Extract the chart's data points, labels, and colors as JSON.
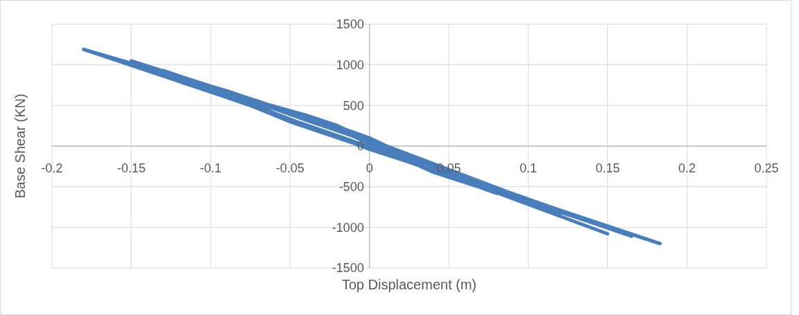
{
  "chart_data": {
    "type": "line",
    "xlabel": "Top Displacement (m)",
    "ylabel": "Base Shear (KN)",
    "xlim": [
      -0.2,
      0.25
    ],
    "xticks": [
      -0.2,
      -0.15,
      -0.1,
      -0.05,
      0,
      0.05,
      0.1,
      0.15,
      0.2,
      0.25
    ],
    "ylim": [
      -1500,
      1500
    ],
    "yticks": [
      -1500,
      -1000,
      -500,
      0,
      500,
      1000,
      1500
    ],
    "grid": true,
    "marker": "none",
    "line_style": "solid",
    "series": [
      {
        "color": "#4a7ebb",
        "x": [
          0,
          0.02,
          0.04,
          0.02,
          0,
          -0.02,
          -0.04,
          -0.02,
          0,
          0.03,
          0.06,
          0.03,
          0,
          -0.03,
          -0.06,
          -0.03,
          0,
          0.04,
          0.08,
          0.04,
          0,
          -0.04,
          -0.08,
          -0.04,
          -0.01,
          0.04,
          0.1,
          0.05,
          0,
          -0.05,
          -0.1,
          -0.05,
          0,
          0.06,
          0.12,
          0.06,
          0,
          -0.06,
          -0.13,
          -0.07,
          0,
          0.07,
          0.15,
          0.1,
          0.05,
          0,
          -0.07,
          -0.15,
          -0.08,
          0,
          0.08,
          0.165,
          0.1,
          0,
          -0.09,
          -0.18,
          -0.09,
          0,
          0.09,
          0.183,
          0.12,
          0.06,
          0,
          -0.05,
          -0.1,
          -0.05,
          0,
          0.07,
          0.15
        ],
        "values": [
          0,
          -150,
          -300,
          -130,
          50,
          220,
          380,
          250,
          60,
          -230,
          -430,
          -200,
          80,
          300,
          470,
          280,
          40,
          -300,
          -580,
          -270,
          100,
          380,
          600,
          320,
          120,
          -320,
          -700,
          -350,
          90,
          420,
          720,
          330,
          -20,
          -420,
          -830,
          -380,
          60,
          470,
          930,
          480,
          -40,
          -480,
          -1000,
          -690,
          -320,
          70,
          550,
          1050,
          540,
          -30,
          -540,
          -1110,
          -660,
          80,
          680,
          1190,
          600,
          -10,
          -610,
          -1200,
          -790,
          -380,
          60,
          400,
          700,
          300,
          -30,
          -500,
          -1080
        ]
      }
    ]
  }
}
